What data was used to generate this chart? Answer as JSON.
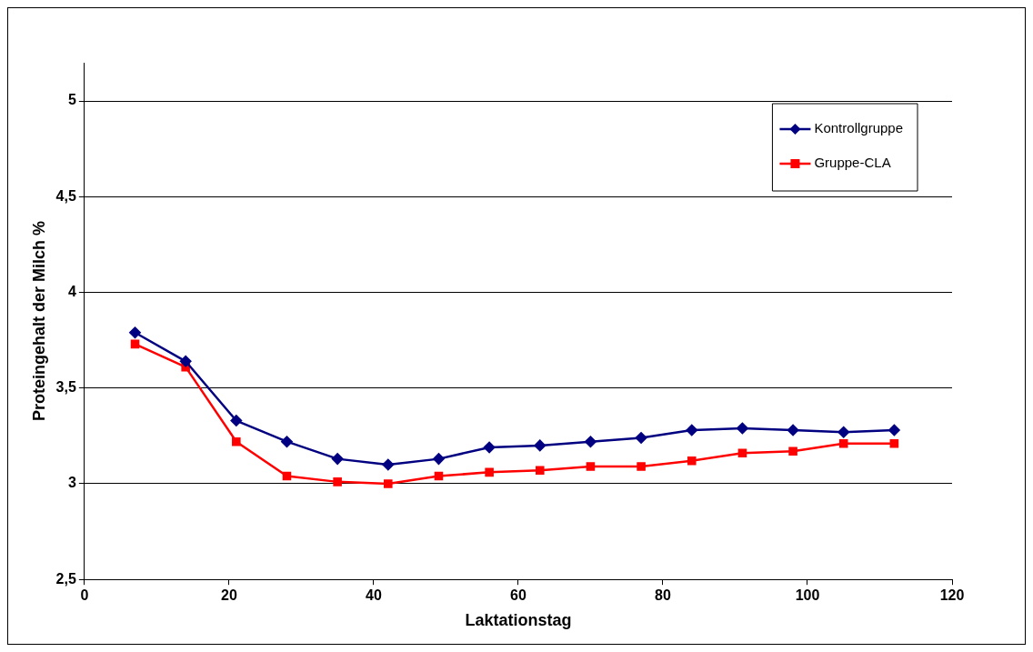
{
  "chart_data": {
    "type": "line",
    "xlabel": "Laktationstag",
    "ylabel": "Proteingehalt der Milch %",
    "x": [
      7,
      14,
      21,
      28,
      35,
      42,
      49,
      56,
      63,
      70,
      77,
      84,
      91,
      98,
      105,
      112
    ],
    "series": [
      {
        "name": "Kontrollgruppe",
        "color": "#000080",
        "marker": "diamond",
        "values": [
          3.79,
          3.64,
          3.33,
          3.22,
          3.13,
          3.1,
          3.13,
          3.19,
          3.2,
          3.22,
          3.24,
          3.28,
          3.29,
          3.28,
          3.27,
          3.28
        ]
      },
      {
        "name": "Gruppe-CLA",
        "color": "#ff0000",
        "marker": "square",
        "values": [
          3.73,
          3.61,
          3.22,
          3.04,
          3.01,
          3.0,
          3.04,
          3.06,
          3.07,
          3.09,
          3.09,
          3.12,
          3.16,
          3.17,
          3.21,
          3.21
        ]
      }
    ],
    "xlim": [
      0,
      120
    ],
    "xticks": [
      0,
      20,
      40,
      60,
      80,
      100,
      120
    ],
    "ylim": [
      2.5,
      5.2
    ],
    "yticks": [
      {
        "value": 2.5,
        "label": "2,5"
      },
      3,
      {
        "value": 3.5,
        "label": "3,5"
      },
      4,
      {
        "value": 4.5,
        "label": "4,5"
      },
      5
    ],
    "grid": "y",
    "legend": "top right",
    "line_style": "solid"
  }
}
